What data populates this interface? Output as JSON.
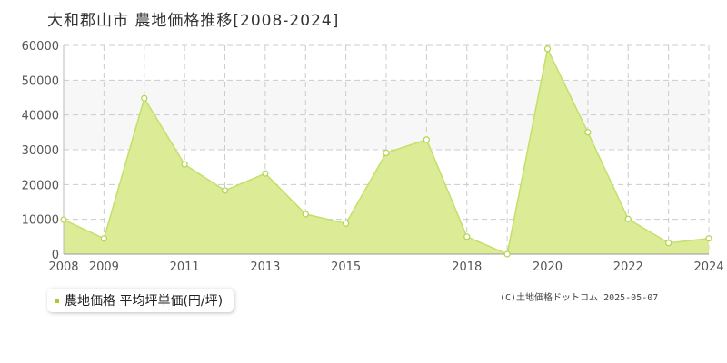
{
  "chart_data": {
    "type": "area",
    "title": "大和郡山市 農地価格推移[2008-2024]",
    "x": [
      2008,
      2009,
      2010,
      2011,
      2012,
      2013,
      2014,
      2015,
      2016,
      2017,
      2018,
      2019,
      2020,
      2021,
      2022,
      2023,
      2024
    ],
    "series": [
      {
        "name": "農地価格 平均坪単価(円/坪)",
        "values": [
          9900,
          4500,
          44800,
          25800,
          18300,
          23200,
          11500,
          8800,
          29100,
          32900,
          5000,
          0,
          59000,
          35000,
          10100,
          3200,
          4500
        ]
      }
    ],
    "xtick_labels": [
      "2008",
      "2009",
      "2011",
      "2013",
      "2015",
      "2018",
      "2020",
      "2022",
      "2024"
    ],
    "ytick_labels": [
      "0",
      "10000",
      "20000",
      "30000",
      "40000",
      "50000",
      "60000"
    ],
    "xlim": [
      2008,
      2024
    ],
    "ylim": [
      0,
      60000
    ],
    "grid": true,
    "legend": "bottom-left",
    "colors": {
      "fill": "#dbeb96",
      "line": "#c2e06a",
      "marker_fill": "#ffffff",
      "marker_stroke": "#b2d44a",
      "band": "#f7f7f7",
      "grid": "#cccccc",
      "legend_marker": "#a8cc2a"
    }
  },
  "legend": {
    "label": "農地価格 平均坪単価(円/坪)"
  },
  "credit": "(C)土地価格ドットコム 2025-05-07"
}
